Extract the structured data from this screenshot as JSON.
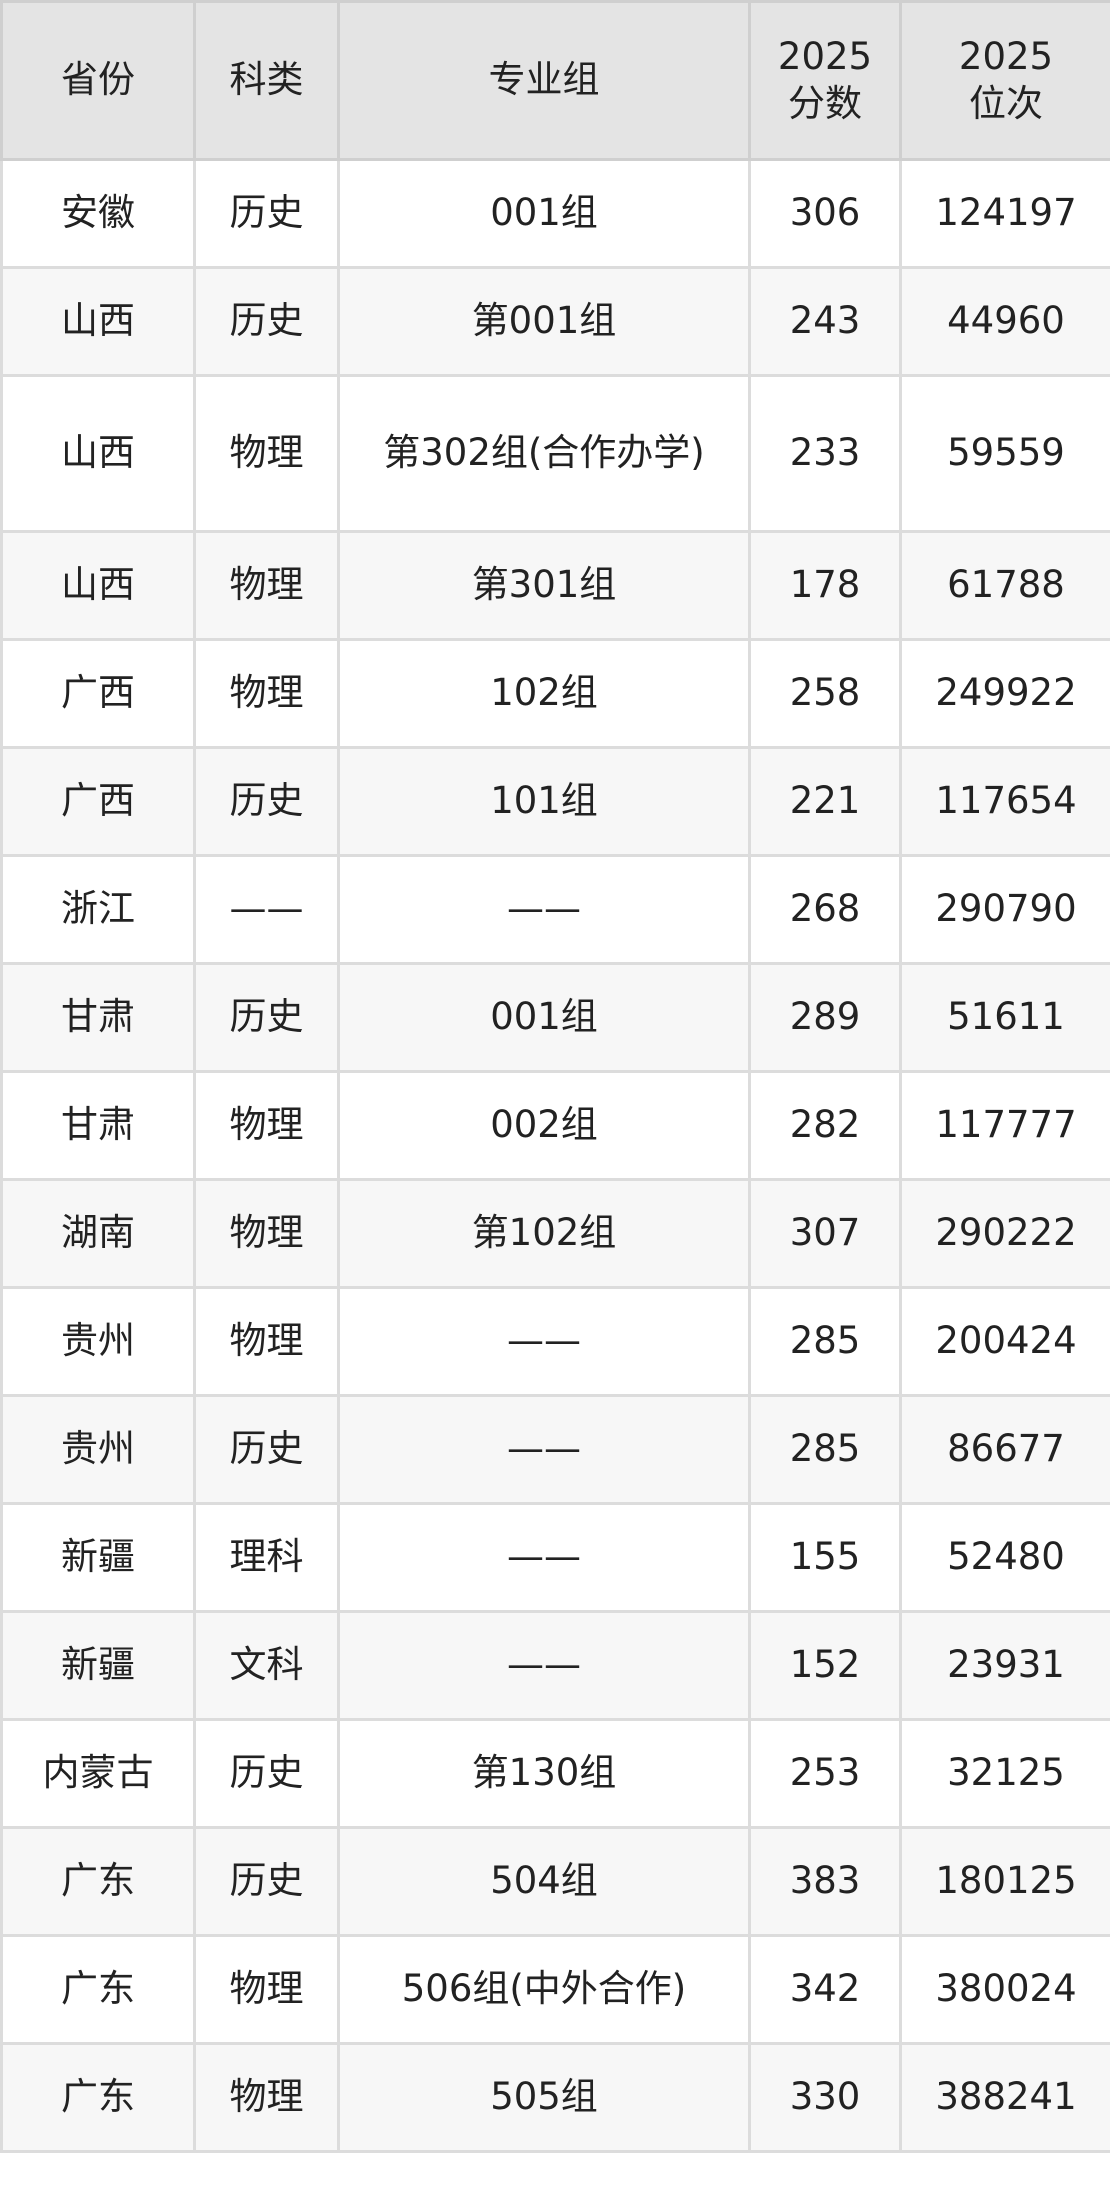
{
  "headers": [
    "省份",
    "科类",
    "专业组",
    "2025\n分数",
    "2025\n位次"
  ],
  "header_lines": [
    [
      "省份"
    ],
    [
      "科类"
    ],
    [
      "专业组"
    ],
    [
      "2025",
      "分数"
    ],
    [
      "2025",
      "位次"
    ]
  ],
  "rows": [
    [
      "安徽",
      "历史",
      "001组",
      "306",
      "124197"
    ],
    [
      "山西",
      "历史",
      "第001组",
      "243",
      "44960"
    ],
    [
      "山西",
      "物理",
      "第302组(合作办学)",
      "233",
      "59559"
    ],
    [
      "山西",
      "物理",
      "第301组",
      "178",
      "61788"
    ],
    [
      "广西",
      "物理",
      "102组",
      "258",
      "249922"
    ],
    [
      "广西",
      "历史",
      "101组",
      "221",
      "117654"
    ],
    [
      "浙江",
      "——",
      "——",
      "268",
      "290790"
    ],
    [
      "甘肃",
      "历史",
      "001组",
      "289",
      "51611"
    ],
    [
      "甘肃",
      "物理",
      "002组",
      "282",
      "117777"
    ],
    [
      "湖南",
      "物理",
      "第102组",
      "307",
      "290222"
    ],
    [
      "贵州",
      "物理",
      "——",
      "285",
      "200424"
    ],
    [
      "贵州",
      "历史",
      "——",
      "285",
      "86677"
    ],
    [
      "新疆",
      "理科",
      "——",
      "155",
      "52480"
    ],
    [
      "新疆",
      "文科",
      "——",
      "152",
      "23931"
    ],
    [
      "内蒙古",
      "历史",
      "第130组",
      "253",
      "32125"
    ],
    [
      "广东",
      "历史",
      "504组",
      "383",
      "180125"
    ],
    [
      "广东",
      "物理",
      "506组(中外合作)",
      "342",
      "380024"
    ],
    [
      "广东",
      "物理",
      "505组",
      "330",
      "388241"
    ]
  ]
}
